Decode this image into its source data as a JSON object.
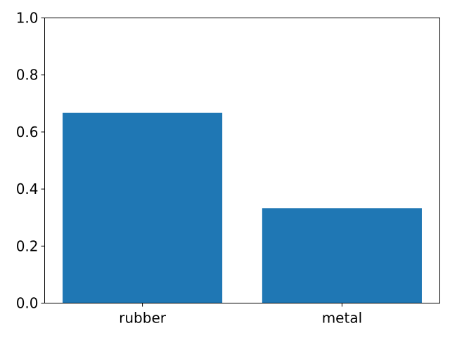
{
  "chart_data": {
    "type": "bar",
    "title": "",
    "xlabel": "",
    "ylabel": "",
    "categories": [
      "rubber",
      "metal"
    ],
    "values": [
      0.667,
      0.333
    ],
    "ylim": [
      0,
      1
    ],
    "yticks": [
      0.0,
      0.2,
      0.4,
      0.6,
      0.8,
      1.0
    ],
    "ytick_labels": [
      "0.0",
      "0.2",
      "0.4",
      "0.6",
      "0.8",
      "1.0"
    ],
    "grid": false,
    "legend": "none",
    "bar_color": "#1f77b4"
  }
}
